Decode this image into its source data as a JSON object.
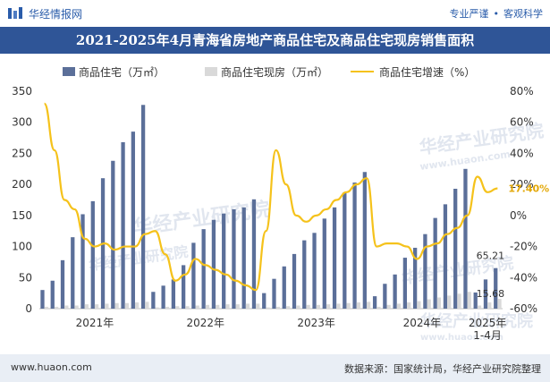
{
  "header": {
    "brand": "华经情报网",
    "slogan_left": "专业严谨",
    "slogan_right": "客观科学"
  },
  "title": "2021-2025年4月青海省房地产商品住宅及商品住宅现房销售面积",
  "footer": {
    "website": "www.huaon.com",
    "source": "数据来源：国家统计局，华经产业研究院整理"
  },
  "watermarks": [
    "华经产业研究院",
    "www.huaon.com"
  ],
  "colors": {
    "brand": "#2a5caa",
    "title_bar": "#2f5597",
    "bar_main": "#5b6f99",
    "bar_xianfang": "#d9d9d9",
    "line": "#f5c21b",
    "annotation_rate": "#e3a808"
  },
  "chart_data": {
    "type": "bar+line",
    "legend": [
      {
        "name": "商品住宅（万㎡）",
        "kind": "bar"
      },
      {
        "name": "商品住宅现房（万㎡）",
        "kind": "bar"
      },
      {
        "name": "商品住宅增速（%）",
        "kind": "line"
      }
    ],
    "legend_position": "top",
    "x_labels": [
      "2021年",
      "2022年",
      "2023年",
      "2024年",
      "2025年\n1-4月"
    ],
    "y_left": {
      "min": 0,
      "max": 350,
      "ticks": [
        0,
        50,
        100,
        150,
        200,
        250,
        300,
        350
      ]
    },
    "y_right": {
      "min": -60,
      "max": 80,
      "ticks": [
        "-60%",
        "-40%",
        "-20%",
        "0%",
        "20%",
        "40%",
        "60%",
        "80%"
      ]
    },
    "series": [
      {
        "name": "商品住宅（万㎡）",
        "values": [
          30,
          45,
          78,
          115,
          152,
          173,
          210,
          238,
          268,
          285,
          328,
          27,
          37,
          47,
          70,
          106,
          128,
          143,
          153,
          160,
          163,
          176,
          25,
          48,
          68,
          88,
          110,
          122,
          145,
          163,
          187,
          203,
          220,
          20,
          40,
          55,
          82,
          98,
          120,
          146,
          168,
          193,
          225,
          26,
          47,
          65.21
        ]
      },
      {
        "name": "商品住宅现房（万㎡）",
        "values": [
          3,
          3,
          5,
          5,
          7,
          7,
          8,
          9,
          9,
          10,
          11,
          2,
          3,
          4,
          4,
          5,
          6,
          6,
          7,
          7,
          8,
          8,
          2,
          3,
          4,
          5,
          6,
          6,
          7,
          8,
          9,
          10,
          11,
          3,
          6,
          8,
          10,
          12,
          15,
          18,
          21,
          24,
          27,
          5,
          10,
          15.68
        ]
      },
      {
        "name": "商品住宅增速（%）",
        "values": [
          72,
          42,
          10,
          4,
          -15,
          -20,
          -18,
          -22,
          -20,
          -20,
          -12,
          -10,
          -25,
          -42,
          -38,
          -28,
          -32,
          -35,
          -38,
          -42,
          -45,
          -48,
          -10,
          42,
          20,
          0,
          -4,
          0,
          4,
          10,
          15,
          20,
          24,
          -20,
          -18,
          -18,
          -20,
          -28,
          -20,
          -18,
          -12,
          -8,
          0,
          25,
          15,
          17.4
        ]
      }
    ],
    "annotations": {
      "bar_main_last": "65.21",
      "bar_xianfang_last": "15.68",
      "line_last": "17.40%"
    }
  }
}
